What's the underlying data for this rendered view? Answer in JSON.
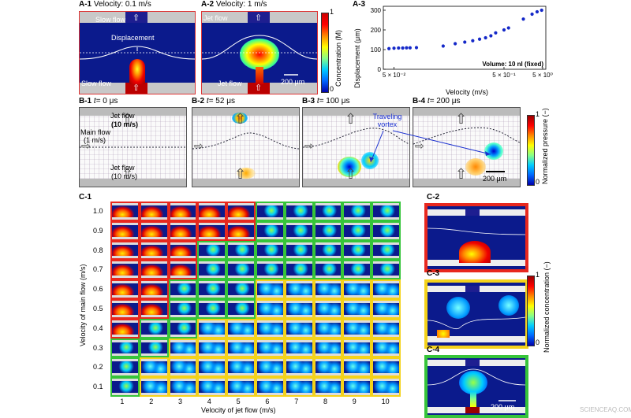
{
  "panelA": {
    "a1": {
      "label": "A-1",
      "title": "Velocity: 0.1 m/s",
      "slow_top": "Slow flow",
      "displacement": "Displacement",
      "slow_bottom": "Slow flow"
    },
    "a2": {
      "label": "A-2",
      "title": "Velocity: 1 m/s",
      "jet_top": "Jet flow",
      "jet_bottom": "Jet flow",
      "scale": "200 μm"
    },
    "colorbar": {
      "title": "Concentration (M)",
      "max": "1",
      "min": "0"
    },
    "a3": {
      "label": "A-3"
    }
  },
  "chart_data": {
    "type": "scatter",
    "xlabel": "Velocity (m/s)",
    "ylabel": "Displacement (μm)",
    "xscale": "log",
    "xlim": [
      0.04,
      1.2
    ],
    "ylim": [
      0,
      320
    ],
    "xticks": [
      "5 × 10⁻²",
      "5 × 10⁻¹",
      "5 × 10⁰"
    ],
    "yticks": [
      "0",
      "100",
      "200",
      "300"
    ],
    "annotation": "Volume: 10 nl (fixed)",
    "x": [
      0.045,
      0.05,
      0.055,
      0.06,
      0.065,
      0.07,
      0.08,
      0.14,
      0.18,
      0.22,
      0.26,
      0.3,
      0.34,
      0.38,
      0.42,
      0.5,
      0.55,
      0.75,
      0.9,
      1.0,
      1.1
    ],
    "y": [
      105,
      107,
      108,
      108,
      109,
      109,
      110,
      118,
      130,
      138,
      145,
      153,
      160,
      170,
      185,
      200,
      210,
      255,
      280,
      292,
      300
    ]
  },
  "panelB": {
    "b1": {
      "label": "B-1",
      "t": "t",
      "time": "= 0 μs",
      "jet_top": "Jet flow",
      "jet_top_v": "(10 m/s)",
      "main": "Main flow",
      "main_v": "(1 m/s)",
      "jet_bottom": "Jet flow",
      "jet_bottom_v": "(10 m/s)"
    },
    "b2": {
      "label": "B-2",
      "t": "t",
      "time": "= 52 μs"
    },
    "b3": {
      "label": "B-3",
      "t": "t",
      "time": "= 100 μs",
      "vortex": "Traveling vortex"
    },
    "b4": {
      "label": "B-4",
      "t": "t",
      "time": "= 200 μs",
      "scale": "200 μm"
    },
    "colorbar": {
      "title": "Normalized pressure (−)",
      "max": "1",
      "min": "0"
    }
  },
  "panelC": {
    "c1": {
      "label": "C-1"
    },
    "ylabel": "Velocity of main flow (m/s)",
    "xlabel": "Velocity of jet flow (m/s)",
    "yticks": [
      "1.0",
      "0.9",
      "0.8",
      "0.7",
      "0.6",
      "0.5",
      "0.4",
      "0.3",
      "0.2",
      "0.1"
    ],
    "xticks": [
      "1",
      "2",
      "3",
      "4",
      "5",
      "6",
      "7",
      "8",
      "9",
      "10"
    ],
    "c2": {
      "label": "C-2"
    },
    "c3": {
      "label": "C-3"
    },
    "c4": {
      "label": "C-4",
      "scale": "200 μm"
    },
    "colorbar": {
      "title": "Normalized concentration (−)",
      "max": "1",
      "min": "0"
    },
    "colors": {
      "red": "#e8281e",
      "yellow": "#f4d21a",
      "green": "#36c43a"
    }
  },
  "watermark": "SCIENCEAQ.COM"
}
